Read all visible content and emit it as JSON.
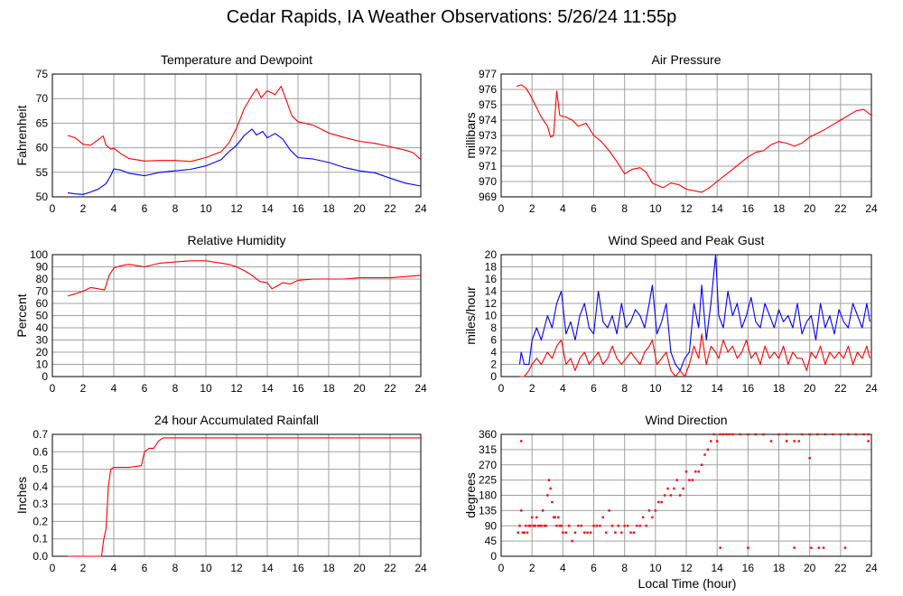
{
  "page": {
    "title": "Cedar Rapids, IA Weather Observations: 5/26/24 11:55p",
    "x_axis_label": "Local Time (hour)"
  },
  "colors": {
    "red": "#ff0000",
    "blue": "#0000ff",
    "grid": "#a0a0a0"
  },
  "chart_data": [
    {
      "type": "line",
      "title": "Temperature and Dewpoint",
      "ylabel": "Fahrenheit",
      "xlim": [
        0,
        24
      ],
      "ylim": [
        50,
        75
      ],
      "xticks": [
        0,
        2,
        4,
        6,
        8,
        10,
        12,
        14,
        16,
        18,
        20,
        22,
        24
      ],
      "yticks": [
        50,
        55,
        60,
        65,
        70,
        75
      ],
      "grid": true,
      "series": [
        {
          "color": "#ff0000",
          "x": [
            1.0,
            1.5,
            2.0,
            2.5,
            3.0,
            3.3,
            3.5,
            3.8,
            4.0,
            4.5,
            5.0,
            6.0,
            7.0,
            8.0,
            9.0,
            10.0,
            11.0,
            11.5,
            12.0,
            12.5,
            13.0,
            13.3,
            13.6,
            14.0,
            14.5,
            14.9,
            15.2,
            15.6,
            16.0,
            17.0,
            18.0,
            19.0,
            20.0,
            21.0,
            22.0,
            23.0,
            23.5,
            24.0
          ],
          "y": [
            62.5,
            62.0,
            60.7,
            60.5,
            61.7,
            62.4,
            60.5,
            59.7,
            59.9,
            58.7,
            57.8,
            57.3,
            57.4,
            57.4,
            57.2,
            58.0,
            59.2,
            61.0,
            64.0,
            68.0,
            70.6,
            72.0,
            70.2,
            71.6,
            70.8,
            72.5,
            70.0,
            66.5,
            65.3,
            64.6,
            63.0,
            62.1,
            61.3,
            60.9,
            60.2,
            59.5,
            59.0,
            57.6
          ]
        },
        {
          "color": "#0000ff",
          "x": [
            1.0,
            1.5,
            2.0,
            2.5,
            3.0,
            3.5,
            3.8,
            4.0,
            4.5,
            5.0,
            6.0,
            7.0,
            8.0,
            9.0,
            10.0,
            11.0,
            11.5,
            12.0,
            12.5,
            13.0,
            13.3,
            13.7,
            14.0,
            14.5,
            15.0,
            15.5,
            16.0,
            17.0,
            18.0,
            19.0,
            20.0,
            21.0,
            22.0,
            23.0,
            24.0
          ],
          "y": [
            50.8,
            50.6,
            50.5,
            51.0,
            51.6,
            52.7,
            54.3,
            55.7,
            55.4,
            54.8,
            54.3,
            55.0,
            55.3,
            55.6,
            56.3,
            57.6,
            59.2,
            60.5,
            62.5,
            63.8,
            62.6,
            63.3,
            62.0,
            62.9,
            61.8,
            59.5,
            58.0,
            57.7,
            57.0,
            56.0,
            55.3,
            54.9,
            53.8,
            52.8,
            52.2
          ]
        }
      ]
    },
    {
      "type": "line",
      "title": "Air Pressure",
      "ylabel": "millibars",
      "xlim": [
        0,
        24
      ],
      "ylim": [
        969,
        977
      ],
      "xticks": [
        0,
        2,
        4,
        6,
        8,
        10,
        12,
        14,
        16,
        18,
        20,
        22,
        24
      ],
      "yticks": [
        969,
        970,
        971,
        972,
        973,
        974,
        975,
        976,
        977
      ],
      "grid": true,
      "series": [
        {
          "color": "#ff0000",
          "x": [
            1.0,
            1.3,
            1.6,
            1.9,
            2.2,
            2.6,
            3.0,
            3.2,
            3.4,
            3.6,
            3.8,
            4.2,
            4.6,
            5.0,
            5.5,
            6.0,
            6.5,
            7.0,
            7.5,
            8.0,
            8.5,
            9.0,
            9.4,
            9.8,
            10.0,
            10.5,
            11.0,
            11.5,
            12.0,
            12.5,
            13.0,
            13.5,
            14.0,
            14.5,
            15.0,
            15.5,
            16.0,
            16.5,
            17.0,
            17.5,
            18.0,
            18.5,
            19.0,
            19.5,
            20.0,
            21.0,
            22.0,
            23.0,
            23.5,
            24.0
          ],
          "y": [
            976.2,
            976.3,
            976.1,
            975.6,
            975.0,
            974.2,
            973.6,
            972.9,
            973.0,
            975.9,
            974.3,
            974.2,
            974.0,
            973.6,
            973.8,
            973.0,
            972.6,
            972.0,
            971.3,
            970.5,
            970.8,
            970.9,
            970.6,
            969.9,
            969.8,
            969.6,
            969.9,
            969.8,
            969.5,
            969.4,
            969.3,
            969.6,
            970.0,
            970.4,
            970.8,
            971.2,
            971.6,
            971.9,
            972.0,
            972.4,
            972.6,
            972.5,
            972.3,
            972.5,
            972.9,
            973.4,
            974.0,
            974.6,
            974.7,
            974.3
          ]
        }
      ]
    },
    {
      "type": "line",
      "title": "Relative Humidity",
      "ylabel": "Percent",
      "xlim": [
        0,
        24
      ],
      "ylim": [
        0,
        100
      ],
      "xticks": [
        0,
        2,
        4,
        6,
        8,
        10,
        12,
        14,
        16,
        18,
        20,
        22,
        24
      ],
      "yticks": [
        0,
        10,
        20,
        30,
        40,
        50,
        60,
        70,
        80,
        90,
        100
      ],
      "grid": true,
      "series": [
        {
          "color": "#ff0000",
          "x": [
            1.0,
            1.5,
            2.0,
            2.5,
            3.0,
            3.4,
            3.7,
            4.0,
            4.5,
            5.0,
            5.5,
            6.0,
            7.0,
            8.0,
            9.0,
            10.0,
            11.0,
            11.5,
            12.0,
            12.5,
            13.0,
            13.5,
            14.0,
            14.3,
            14.6,
            15.0,
            15.5,
            16.0,
            17.0,
            18.0,
            19.0,
            20.0,
            21.0,
            22.0,
            23.0,
            24.0
          ],
          "y": [
            66,
            68,
            70,
            73,
            72,
            71,
            83,
            89,
            91,
            92,
            91,
            90,
            93,
            94,
            95,
            95,
            93,
            92,
            90,
            87,
            83,
            78,
            77,
            72,
            74,
            77,
            76,
            79,
            80,
            80,
            80,
            81,
            81,
            81,
            82,
            83
          ]
        }
      ]
    },
    {
      "type": "line",
      "title": "Wind Speed and Peak Gust",
      "ylabel": "miles/hour",
      "xlim": [
        0,
        24
      ],
      "ylim": [
        0,
        20
      ],
      "xticks": [
        0,
        2,
        4,
        6,
        8,
        10,
        12,
        14,
        16,
        18,
        20,
        22,
        24
      ],
      "yticks": [
        0,
        2,
        4,
        6,
        8,
        10,
        12,
        14,
        16,
        18,
        20
      ],
      "grid": true,
      "series": [
        {
          "color": "#0000ff",
          "x": [
            1.2,
            1.3,
            1.5,
            1.8,
            2.0,
            2.3,
            2.6,
            3.0,
            3.3,
            3.6,
            3.9,
            4.2,
            4.5,
            4.8,
            5.1,
            5.4,
            5.7,
            6.0,
            6.3,
            6.6,
            6.9,
            7.2,
            7.5,
            7.8,
            8.1,
            8.4,
            8.7,
            9.0,
            9.3,
            9.6,
            9.8,
            10.1,
            10.4,
            10.7,
            11.0,
            11.3,
            11.6,
            11.9,
            12.2,
            12.5,
            12.8,
            13.0,
            13.3,
            13.6,
            13.9,
            14.1,
            14.4,
            14.7,
            15.0,
            15.3,
            15.6,
            15.9,
            16.2,
            16.5,
            16.8,
            17.1,
            17.4,
            17.7,
            18.0,
            18.3,
            18.6,
            18.9,
            19.2,
            19.5,
            19.8,
            20.1,
            20.4,
            20.7,
            21.0,
            21.3,
            21.6,
            21.9,
            22.2,
            22.5,
            22.8,
            23.1,
            23.4,
            23.7,
            23.9
          ],
          "y": [
            2,
            4,
            2,
            2,
            6,
            8,
            6,
            10,
            8,
            12,
            14,
            7,
            9,
            6,
            10,
            12,
            8,
            7,
            14,
            9,
            8,
            10,
            7,
            12,
            8,
            9,
            11,
            10,
            8,
            12,
            15,
            7,
            9,
            12,
            4,
            2,
            1,
            3,
            4,
            12,
            8,
            15,
            6,
            12,
            20,
            10,
            8,
            14,
            10,
            12,
            8,
            10,
            13,
            9,
            8,
            12,
            10,
            8,
            11,
            9,
            10,
            8,
            12,
            7,
            9,
            10,
            6,
            12,
            8,
            10,
            7,
            11,
            9,
            8,
            12,
            10,
            8,
            12,
            9
          ]
        },
        {
          "color": "#ff0000",
          "x": [
            1.2,
            1.5,
            1.8,
            2.0,
            2.3,
            2.6,
            3.0,
            3.3,
            3.6,
            3.9,
            4.2,
            4.5,
            4.8,
            5.1,
            5.4,
            5.7,
            6.0,
            6.3,
            6.6,
            6.9,
            7.2,
            7.5,
            7.8,
            8.1,
            8.4,
            8.7,
            9.0,
            9.3,
            9.6,
            9.8,
            10.1,
            10.4,
            10.7,
            11.0,
            11.3,
            11.6,
            11.9,
            12.2,
            12.5,
            12.8,
            13.0,
            13.3,
            13.6,
            13.9,
            14.1,
            14.4,
            14.7,
            15.0,
            15.3,
            15.6,
            15.9,
            16.2,
            16.5,
            16.8,
            17.1,
            17.4,
            17.7,
            18.0,
            18.3,
            18.6,
            18.9,
            19.2,
            19.5,
            19.8,
            20.1,
            20.4,
            20.7,
            21.0,
            21.3,
            21.6,
            21.9,
            22.2,
            22.5,
            22.8,
            23.1,
            23.4,
            23.7,
            23.9
          ],
          "y": [
            0,
            0,
            1,
            2,
            3,
            2,
            4,
            3,
            5,
            6,
            2,
            3,
            1,
            3,
            4,
            2,
            3,
            4,
            2,
            3,
            5,
            3,
            2,
            3,
            4,
            3,
            2,
            4,
            5,
            6,
            2,
            3,
            4,
            1,
            0,
            1,
            0,
            2,
            5,
            3,
            7,
            2,
            5,
            4,
            3,
            6,
            4,
            5,
            3,
            4,
            6,
            3,
            4,
            2,
            5,
            3,
            4,
            3,
            5,
            2,
            4,
            3,
            3,
            1,
            4,
            3,
            5,
            2,
            4,
            3,
            4,
            3,
            5,
            2,
            4,
            3,
            5,
            3
          ]
        }
      ]
    },
    {
      "type": "line",
      "title": "24 hour Accumulated Rainfall",
      "ylabel": "Inches",
      "xlim": [
        0,
        24
      ],
      "ylim": [
        0,
        0.7
      ],
      "xticks": [
        0,
        2,
        4,
        6,
        8,
        10,
        12,
        14,
        16,
        18,
        20,
        22,
        24
      ],
      "yticks": [
        0.0,
        0.1,
        0.2,
        0.3,
        0.4,
        0.5,
        0.6,
        0.7
      ],
      "ytick_labels": [
        "0.0",
        "0.1",
        "0.2",
        "0.3",
        "0.4",
        "0.5",
        "0.6",
        "0.7"
      ],
      "grid": true,
      "series": [
        {
          "color": "#ff0000",
          "x": [
            1.0,
            3.2,
            3.35,
            3.5,
            3.65,
            3.8,
            4.0,
            5.0,
            5.8,
            6.0,
            6.3,
            6.6,
            6.9,
            7.2,
            8.0,
            12.0,
            16.0,
            20.0,
            24.0
          ],
          "y": [
            0.0,
            0.0,
            0.1,
            0.16,
            0.4,
            0.5,
            0.51,
            0.51,
            0.52,
            0.6,
            0.62,
            0.62,
            0.66,
            0.68,
            0.68,
            0.68,
            0.68,
            0.68,
            0.68
          ]
        }
      ]
    },
    {
      "type": "scatter",
      "title": "Wind Direction",
      "ylabel": "degrees",
      "xlabel": "Local Time (hour)",
      "xlim": [
        0,
        24
      ],
      "ylim": [
        0,
        360
      ],
      "xticks": [
        0,
        2,
        4,
        6,
        8,
        10,
        12,
        14,
        16,
        18,
        20,
        22,
        24
      ],
      "yticks": [
        0,
        45,
        90,
        135,
        180,
        225,
        270,
        315,
        360
      ],
      "grid": true,
      "series": [
        {
          "color": "#ff0000",
          "x": [
            1.1,
            1.2,
            1.3,
            1.4,
            1.5,
            1.6,
            1.7,
            1.8,
            1.9,
            2.0,
            2.1,
            2.2,
            2.3,
            2.4,
            2.5,
            2.6,
            2.7,
            2.8,
            2.9,
            3.0,
            3.1,
            3.2,
            3.3,
            3.4,
            3.5,
            3.6,
            3.7,
            3.8,
            3.9,
            4.0,
            4.2,
            4.4,
            4.6,
            4.8,
            5.0,
            5.2,
            5.4,
            5.6,
            5.8,
            6.0,
            6.2,
            6.4,
            6.6,
            6.8,
            7.0,
            7.2,
            7.4,
            7.6,
            7.8,
            8.0,
            8.2,
            8.4,
            8.6,
            8.8,
            9.0,
            9.2,
            9.4,
            9.6,
            9.8,
            10.0,
            10.2,
            10.4,
            10.6,
            10.8,
            11.0,
            11.2,
            11.4,
            11.6,
            11.8,
            12.0,
            12.2,
            12.4,
            12.6,
            12.8,
            13.0,
            13.2,
            13.4,
            13.6,
            13.8,
            14.0,
            14.2,
            14.4,
            14.6,
            14.8,
            15.0,
            15.5,
            16.0,
            16.5,
            17.0,
            17.5,
            18.0,
            18.5,
            19.0,
            19.5,
            20.0,
            20.5,
            21.0,
            21.5,
            22.0,
            22.5,
            23.0,
            23.5,
            23.8,
            14.2,
            16.0,
            19.0,
            20.1,
            20.6,
            20.9,
            22.3,
            1.3,
            23.8,
            20.0,
            18.5,
            19.3
          ],
          "y": [
            70,
            90,
            135,
            70,
            70,
            90,
            70,
            90,
            90,
            115,
            90,
            90,
            115,
            90,
            90,
            90,
            135,
            90,
            90,
            180,
            225,
            200,
            160,
            115,
            115,
            90,
            115,
            90,
            90,
            70,
            70,
            90,
            45,
            70,
            90,
            90,
            70,
            70,
            70,
            90,
            90,
            90,
            115,
            70,
            135,
            90,
            70,
            90,
            70,
            90,
            90,
            70,
            70,
            90,
            90,
            115,
            90,
            135,
            115,
            135,
            160,
            160,
            180,
            200,
            180,
            200,
            225,
            180,
            200,
            250,
            225,
            225,
            250,
            250,
            270,
            300,
            315,
            340,
            360,
            340,
            360,
            360,
            360,
            360,
            360,
            360,
            360,
            360,
            360,
            340,
            360,
            360,
            340,
            360,
            360,
            360,
            360,
            360,
            360,
            360,
            360,
            360,
            360,
            25,
            25,
            25,
            25,
            25,
            25,
            25,
            340,
            340,
            290,
            340,
            340
          ]
        }
      ]
    }
  ]
}
